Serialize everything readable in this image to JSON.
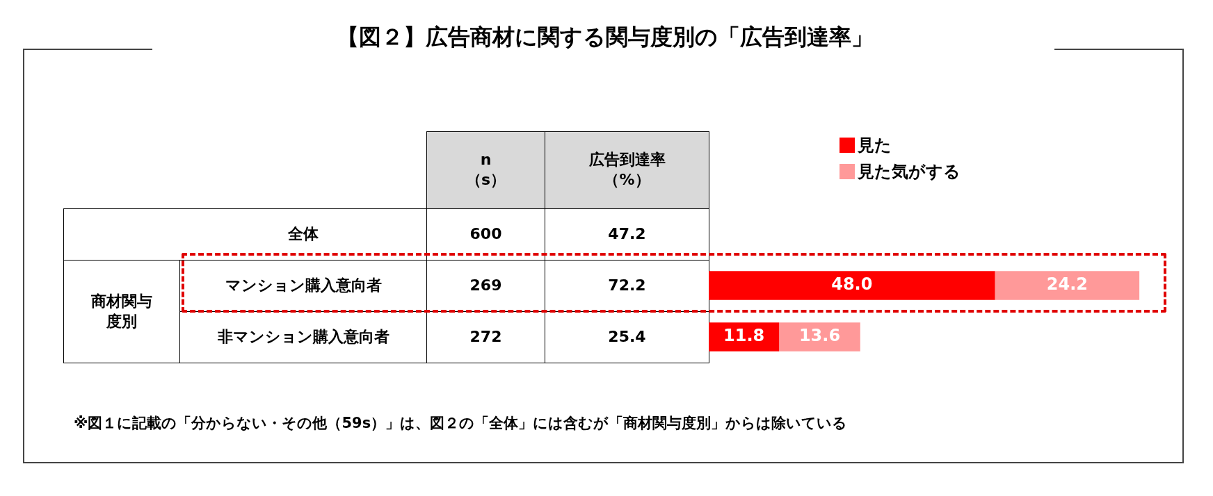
{
  "chart_data": {
    "type": "bar",
    "orientation": "horizontal",
    "stacked": true,
    "title": "【図２】広告商材に関する関与度別の「広告到達率」",
    "categories": [
      "全体",
      "マンション購入意向者",
      "非マンション購入意向者"
    ],
    "series": [
      {
        "name": "見た",
        "color": "#ff0000",
        "values": [
          null,
          48.0,
          11.8
        ],
        "value_labels": [
          null,
          "48.0",
          "11.8"
        ]
      },
      {
        "name": "見た気がする",
        "color": "#ff9999",
        "values": [
          null,
          24.2,
          13.6
        ],
        "value_labels": [
          null,
          "24.2",
          "13.6"
        ]
      }
    ],
    "annotations": [
      "n\n（s）",
      "広告到達率（%）",
      "商材関与度別",
      "※図１に記載の「分からない・その他（59s）」は、図２の「全体」には含むが「商材関与度別」からは除いている",
      "600",
      "269",
      "272",
      "47.2",
      "72.2",
      "25.4"
    ],
    "legend": "top left"
  }
}
